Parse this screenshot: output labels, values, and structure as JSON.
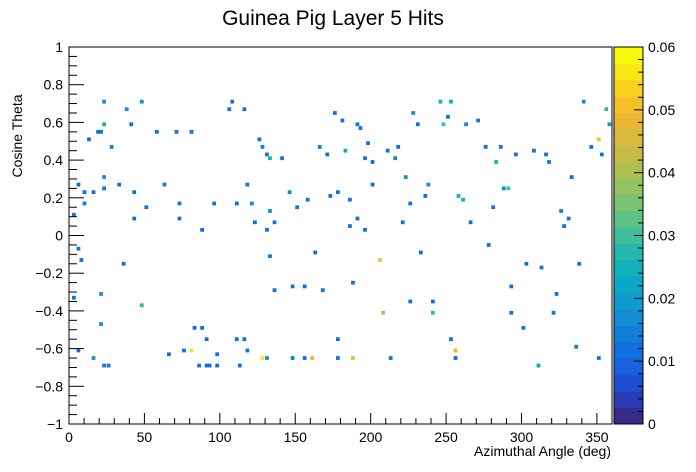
{
  "chart_data": {
    "type": "heatmap",
    "title": "Guinea Pig Layer 5 Hits",
    "xlabel": "Azimuthal Angle (deg)",
    "ylabel": "Cosine Theta",
    "xlim": [
      0,
      360
    ],
    "ylim": [
      -1,
      1
    ],
    "bin_size": {
      "x": 2.5,
      "y": 0.02
    },
    "x_ticks": [
      0,
      50,
      100,
      150,
      200,
      250,
      300,
      350
    ],
    "x_tick_labels": [
      "0",
      "50",
      "100",
      "150",
      "200",
      "250",
      "300",
      "350"
    ],
    "y_ticks": [
      -1,
      -0.8,
      -0.6,
      -0.4,
      -0.2,
      0,
      0.2,
      0.4,
      0.6,
      0.8,
      1
    ],
    "y_tick_labels": [
      "−1",
      "−0.8",
      "−0.6",
      "−0.4",
      "−0.2",
      "0",
      "0.2",
      "0.4",
      "0.6",
      "0.8",
      "1"
    ],
    "z_range": [
      0,
      0.06
    ],
    "z_ticks": [
      0,
      0.01,
      0.02,
      0.03,
      0.04,
      0.05,
      0.06
    ],
    "z_tick_labels": [
      "0",
      "0.01",
      "0.02",
      "0.03",
      "0.04",
      "0.05",
      "0.06"
    ],
    "palette": [
      "#352a87",
      "#2a3bb4",
      "#1f4fd0",
      "#1762dd",
      "#0f70de",
      "#0d7fd9",
      "#108dd3",
      "#109bce",
      "#0ca7c6",
      "#12b0bb",
      "#25b8ad",
      "#3fbe9b",
      "#5cc286",
      "#79c372",
      "#95c360",
      "#b0c050",
      "#c6bc44",
      "#d9b93c",
      "#eab833",
      "#f6c02b",
      "#fbd11f",
      "#fbe615",
      "#f9fb0e"
    ],
    "bins": [
      [
        2,
        0.1,
        0.012
      ],
      [
        2,
        -0.34,
        0.012
      ],
      [
        5,
        0.26,
        0.012
      ],
      [
        5,
        -0.08,
        0.012
      ],
      [
        5,
        -0.62,
        0.012
      ],
      [
        7,
        -0.14,
        0.012
      ],
      [
        9,
        0.22,
        0.012
      ],
      [
        9,
        0.16,
        0.015
      ],
      [
        12,
        0.5,
        0.012
      ],
      [
        15,
        0.22,
        0.012
      ],
      [
        15,
        -0.66,
        0.018
      ],
      [
        18,
        0.54,
        0.012
      ],
      [
        20,
        0.54,
        0.012
      ],
      [
        20,
        -0.32,
        0.018
      ],
      [
        20,
        -0.48,
        0.018
      ],
      [
        22,
        0.7,
        0.018
      ],
      [
        22,
        0.3,
        0.018
      ],
      [
        22,
        0.24,
        0.012
      ],
      [
        22,
        0.58,
        0.025
      ],
      [
        22,
        -0.7,
        0.012
      ],
      [
        25,
        -0.7,
        0.012
      ],
      [
        27,
        0.46,
        0.015
      ],
      [
        32,
        0.26,
        0.012
      ],
      [
        35,
        -0.16,
        0.012
      ],
      [
        37,
        0.66,
        0.018
      ],
      [
        40,
        0.58,
        0.012
      ],
      [
        42,
        0.22,
        0.012
      ],
      [
        42,
        0.08,
        0.012
      ],
      [
        47,
        0.7,
        0.018
      ],
      [
        47,
        -0.38,
        0.028
      ],
      [
        50,
        0.14,
        0.012
      ],
      [
        57,
        0.54,
        0.012
      ],
      [
        62,
        0.26,
        0.012
      ],
      [
        65,
        -0.64,
        0.012
      ],
      [
        70,
        0.54,
        0.012
      ],
      [
        72,
        0.16,
        0.012
      ],
      [
        72,
        0.08,
        0.012
      ],
      [
        75,
        -0.62,
        0.012
      ],
      [
        80,
        -0.62,
        0.055
      ],
      [
        80,
        0.54,
        0.012
      ],
      [
        82,
        -0.5,
        0.012
      ],
      [
        85,
        -0.7,
        0.012
      ],
      [
        87,
        -0.5,
        0.012
      ],
      [
        87,
        0.02,
        0.012
      ],
      [
        90,
        -0.7,
        0.012
      ],
      [
        90,
        -0.56,
        0.012
      ],
      [
        92,
        -0.7,
        0.012
      ],
      [
        95,
        0.16,
        0.012
      ],
      [
        97,
        -0.7,
        0.012
      ],
      [
        97,
        -0.64,
        0.012
      ],
      [
        105,
        0.66,
        0.012
      ],
      [
        107,
        0.7,
        0.012
      ],
      [
        110,
        0.16,
        0.012
      ],
      [
        110,
        -0.56,
        0.012
      ],
      [
        112,
        -0.7,
        0.012
      ],
      [
        115,
        0.66,
        0.012
      ],
      [
        115,
        -0.56,
        0.012
      ],
      [
        117,
        0.26,
        0.012
      ],
      [
        117,
        -0.62,
        0.012
      ],
      [
        120,
        0.16,
        0.018
      ],
      [
        122,
        0.06,
        0.012
      ],
      [
        125,
        0.5,
        0.012
      ],
      [
        127,
        0.46,
        0.015
      ],
      [
        127,
        -0.66,
        0.055
      ],
      [
        130,
        0.42,
        0.012
      ],
      [
        130,
        0.02,
        0.012
      ],
      [
        130,
        -0.66,
        0.018
      ],
      [
        132,
        0.4,
        0.025
      ],
      [
        132,
        0.12,
        0.018
      ],
      [
        132,
        -0.12,
        0.012
      ],
      [
        135,
        0.06,
        0.012
      ],
      [
        135,
        -0.3,
        0.012
      ],
      [
        140,
        0.4,
        0.012
      ],
      [
        145,
        0.22,
        0.018
      ],
      [
        147,
        -0.28,
        0.012
      ],
      [
        147,
        -0.66,
        0.015
      ],
      [
        150,
        0.14,
        0.012
      ],
      [
        155,
        -0.28,
        0.012
      ],
      [
        155,
        -0.66,
        0.012
      ],
      [
        157,
        0.18,
        0.012
      ],
      [
        160,
        -0.66,
        0.045
      ],
      [
        162,
        -0.1,
        0.012
      ],
      [
        165,
        0.46,
        0.015
      ],
      [
        167,
        -0.3,
        0.012
      ],
      [
        170,
        0.42,
        0.012
      ],
      [
        172,
        0.2,
        0.012
      ],
      [
        175,
        0.64,
        0.012
      ],
      [
        177,
        0.22,
        0.012
      ],
      [
        177,
        -0.56,
        0.012
      ],
      [
        177,
        -0.66,
        0.012
      ],
      [
        180,
        0.6,
        0.012
      ],
      [
        182,
        0.44,
        0.025
      ],
      [
        185,
        0.04,
        0.012
      ],
      [
        185,
        0.18,
        0.012
      ],
      [
        187,
        -0.66,
        0.048
      ],
      [
        187,
        -0.26,
        0.012
      ],
      [
        190,
        0.58,
        0.012
      ],
      [
        190,
        0.08,
        0.012
      ],
      [
        192,
        0.56,
        0.012
      ],
      [
        195,
        0.4,
        0.012
      ],
      [
        195,
        0.02,
        0.012
      ],
      [
        197,
        0.48,
        0.012
      ],
      [
        200,
        0.38,
        0.012
      ],
      [
        200,
        0.26,
        0.012
      ],
      [
        205,
        -0.14,
        0.05
      ],
      [
        207,
        -0.42,
        0.04
      ],
      [
        210,
        0.44,
        0.012
      ],
      [
        212,
        -0.66,
        0.012
      ],
      [
        215,
        0.4,
        0.015
      ],
      [
        217,
        0.46,
        0.012
      ],
      [
        220,
        0.06,
        0.012
      ],
      [
        222,
        0.3,
        0.018
      ],
      [
        225,
        0.16,
        0.012
      ],
      [
        225,
        -0.36,
        0.012
      ],
      [
        227,
        0.64,
        0.018
      ],
      [
        230,
        0.58,
        0.012
      ],
      [
        232,
        -0.1,
        0.012
      ],
      [
        235,
        0.2,
        0.012
      ],
      [
        237,
        0.26,
        0.018
      ],
      [
        240,
        -0.42,
        0.028
      ],
      [
        240,
        -0.36,
        0.012
      ],
      [
        245,
        0.7,
        0.025
      ],
      [
        247,
        0.58,
        0.03
      ],
      [
        250,
        0.62,
        0.012
      ],
      [
        252,
        0.7,
        0.022
      ],
      [
        252,
        -0.56,
        0.012
      ],
      [
        255,
        -0.62,
        0.048
      ],
      [
        255,
        -0.66,
        0.012
      ],
      [
        257,
        0.2,
        0.025
      ],
      [
        260,
        0.18,
        0.025
      ],
      [
        262,
        0.58,
        0.018
      ],
      [
        265,
        0.06,
        0.012
      ],
      [
        270,
        0.6,
        0.012
      ],
      [
        275,
        0.46,
        0.012
      ],
      [
        277,
        -0.06,
        0.012
      ],
      [
        280,
        0.14,
        0.012
      ],
      [
        282,
        0.38,
        0.025
      ],
      [
        285,
        0.46,
        0.012
      ],
      [
        287,
        0.24,
        0.018
      ],
      [
        290,
        0.24,
        0.03
      ],
      [
        292,
        -0.28,
        0.012
      ],
      [
        292,
        -0.42,
        0.012
      ],
      [
        295,
        0.42,
        0.012
      ],
      [
        300,
        -0.5,
        0.012
      ],
      [
        302,
        -0.16,
        0.012
      ],
      [
        307,
        0.44,
        0.012
      ],
      [
        310,
        -0.7,
        0.022
      ],
      [
        312,
        -0.18,
        0.012
      ],
      [
        315,
        0.42,
        0.012
      ],
      [
        317,
        0.38,
        0.012
      ],
      [
        320,
        -0.42,
        0.012
      ],
      [
        322,
        -0.32,
        0.012
      ],
      [
        325,
        0.12,
        0.015
      ],
      [
        327,
        0.04,
        0.012
      ],
      [
        330,
        0.08,
        0.012
      ],
      [
        332,
        0.3,
        0.012
      ],
      [
        335,
        -0.6,
        0.015
      ],
      [
        337,
        -0.16,
        0.012
      ],
      [
        340,
        0.7,
        0.018
      ],
      [
        345,
        0.46,
        0.012
      ],
      [
        350,
        -0.66,
        0.012
      ],
      [
        350,
        0.5,
        0.05
      ],
      [
        352,
        0.42,
        0.012
      ],
      [
        355,
        0.66,
        0.028
      ],
      [
        357,
        0.58,
        0.022
      ]
    ]
  }
}
